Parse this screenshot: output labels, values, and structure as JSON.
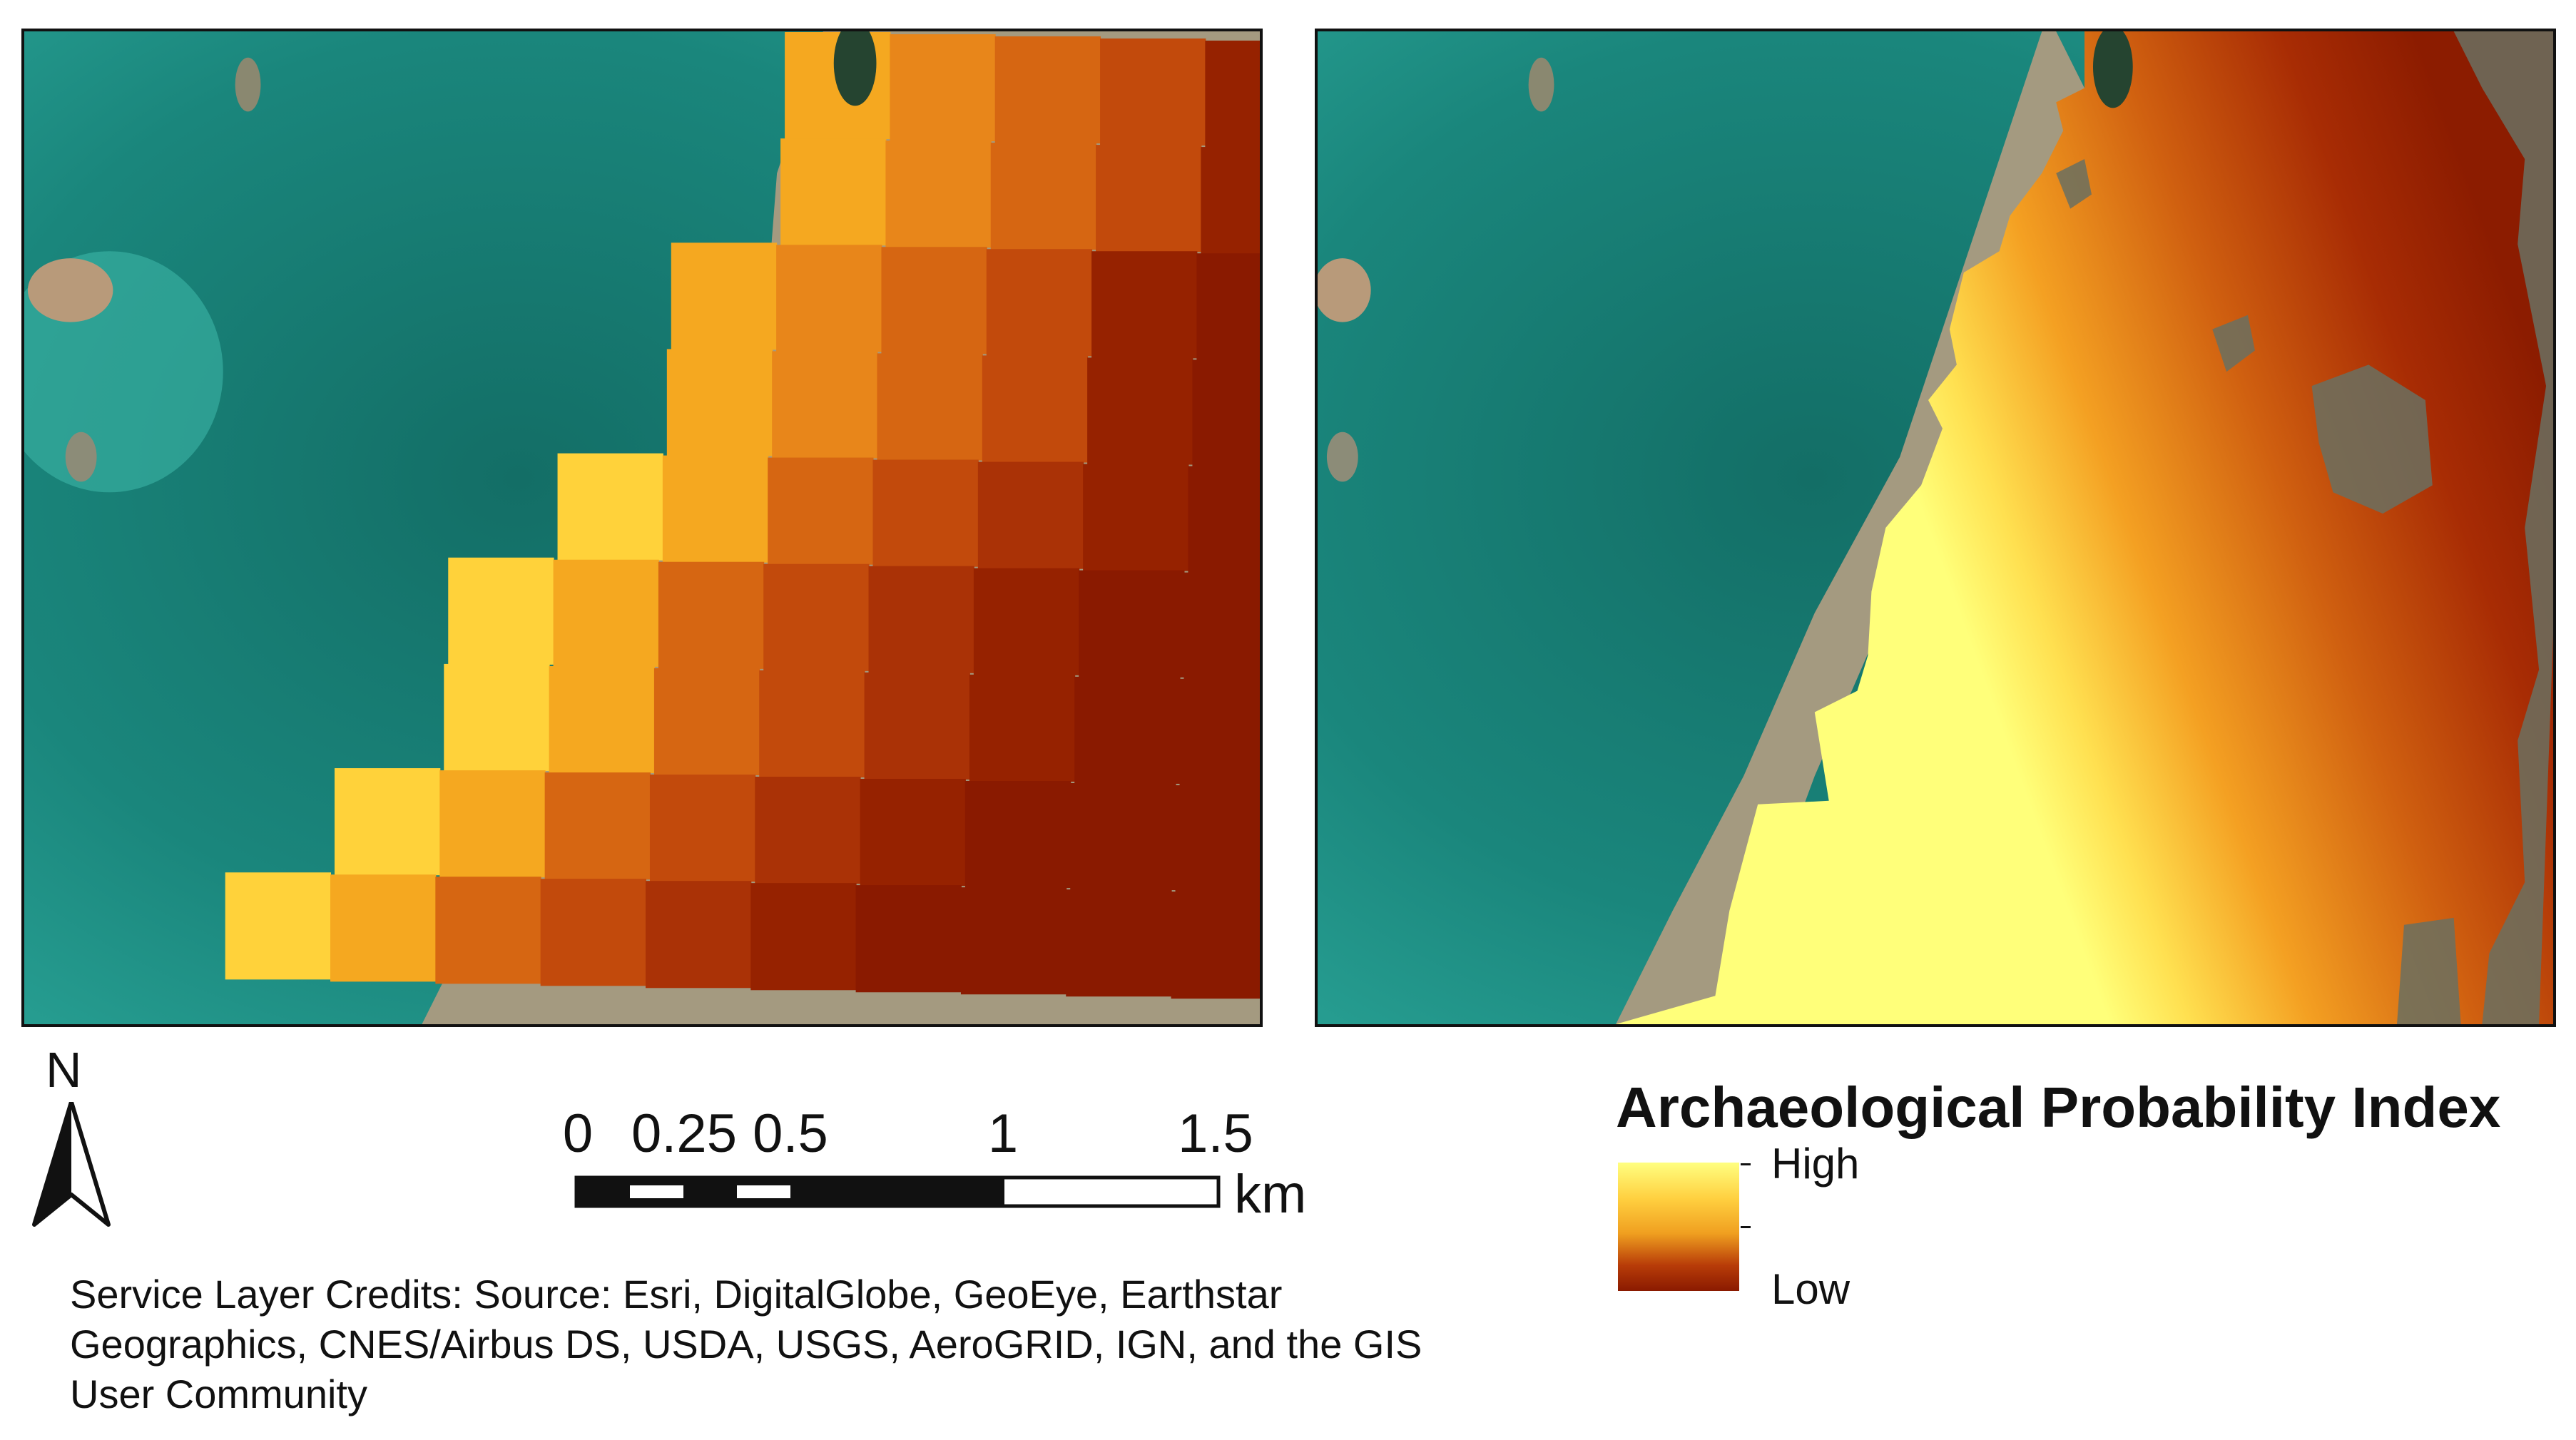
{
  "north_arrow": {
    "letter": "N",
    "icon": "north-arrow-icon"
  },
  "scale_bar": {
    "ticks": [
      "0",
      "0.25",
      "0.5",
      "1",
      "1.5"
    ],
    "unit": "km"
  },
  "credits": {
    "text": "Service Layer Credits: Source: Esri, DigitalGlobe, GeoEye, Earthstar Geographics, CNES/Airbus DS, USDA, USGS, AeroGRID, IGN, and the GIS User Community"
  },
  "legend": {
    "title": "Archaeological Probability Index",
    "high_label": "High",
    "low_label": "Low",
    "colors": {
      "high": "#ffff80",
      "mid": "#f0a020",
      "low": "#8a1a00"
    }
  },
  "colors": {
    "sea": "#1f9488",
    "shore": "#9c9078",
    "probability_high": "#fff07a",
    "probability_low": "#8c1c00"
  }
}
